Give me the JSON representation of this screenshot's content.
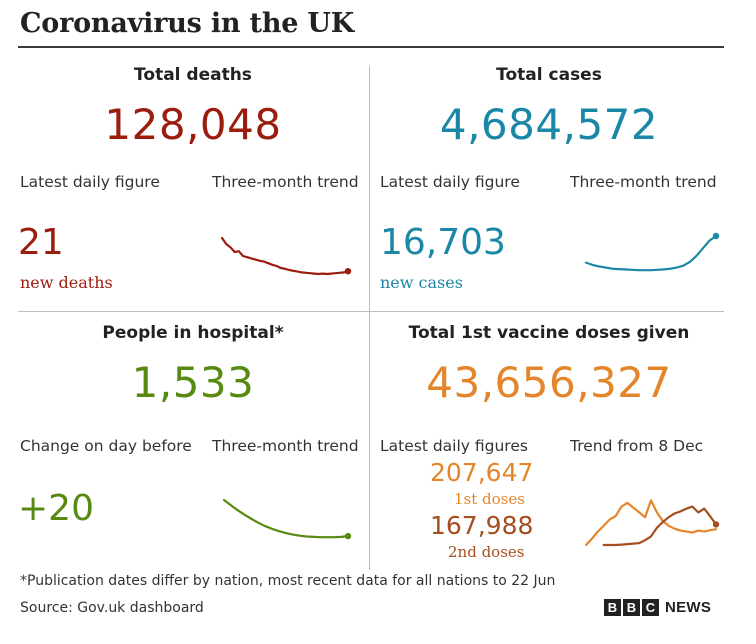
{
  "title": "Coronavirus in the UK",
  "colors": {
    "deaths": "#9c1c0e",
    "cases": "#1a87a6",
    "hospital": "#588a12",
    "vaccine_first": "#e4852a",
    "vaccine_second": "#a54e1f"
  },
  "deaths": {
    "heading": "Total deaths",
    "total": "128,048",
    "daily_label": "Latest daily figure",
    "trend_label": "Three-month trend",
    "daily_value": "21",
    "daily_unit": "new deaths"
  },
  "cases": {
    "heading": "Total cases",
    "total": "4,684,572",
    "daily_label": "Latest daily figure",
    "trend_label": "Three-month trend",
    "daily_value": "16,703",
    "daily_unit": "new cases"
  },
  "hospital": {
    "heading": "People in hospital*",
    "total": "1,533",
    "daily_label": "Change on day before",
    "trend_label": "Three-month trend",
    "daily_value": "+20"
  },
  "vaccine": {
    "heading": "Total 1st vaccine doses given",
    "total": "43,656,327",
    "daily_label": "Latest daily figures",
    "trend_label": "Trend from 8 Dec",
    "first_value": "207,647",
    "first_label": "1st doses",
    "second_value": "167,988",
    "second_label": "2nd doses"
  },
  "chart_data": [
    {
      "type": "line",
      "name": "deaths-trend",
      "values": [
        0.95,
        0.8,
        0.72,
        0.6,
        0.62,
        0.5,
        0.47,
        0.44,
        0.41,
        0.38,
        0.36,
        0.32,
        0.28,
        0.25,
        0.2,
        0.18,
        0.15,
        0.13,
        0.11,
        0.09,
        0.08,
        0.07,
        0.06,
        0.05,
        0.06,
        0.05,
        0.06,
        0.07,
        0.08,
        0.09,
        0.12
      ]
    },
    {
      "type": "line",
      "name": "cases-trend",
      "values": [
        0.3,
        0.24,
        0.2,
        0.17,
        0.14,
        0.13,
        0.12,
        0.11,
        0.1,
        0.1,
        0.1,
        0.11,
        0.12,
        0.14,
        0.17,
        0.22,
        0.32,
        0.48,
        0.68,
        0.88,
        1.0
      ]
    },
    {
      "type": "line",
      "name": "hospital-trend",
      "values": [
        1.0,
        0.86,
        0.73,
        0.61,
        0.5,
        0.4,
        0.31,
        0.24,
        0.18,
        0.13,
        0.09,
        0.06,
        0.04,
        0.03,
        0.02,
        0.02,
        0.02,
        0.03,
        0.05
      ]
    },
    {
      "type": "line",
      "name": "vaccine-trend",
      "series": [
        {
          "name": "1st doses",
          "values": [
            0.02,
            0.15,
            0.3,
            0.42,
            0.55,
            0.62,
            0.82,
            0.9,
            0.8,
            0.7,
            0.6,
            0.95,
            0.7,
            0.52,
            0.42,
            0.36,
            0.32,
            0.3,
            0.28,
            0.32,
            0.3,
            0.33,
            0.35
          ]
        },
        {
          "name": "2nd doses",
          "values": [
            0.02,
            0.02,
            0.02,
            0.03,
            0.04,
            0.05,
            0.06,
            0.12,
            0.2,
            0.38,
            0.5,
            0.6,
            0.68,
            0.72,
            0.78,
            0.82,
            0.7,
            0.78,
            0.62,
            0.45
          ]
        }
      ]
    }
  ],
  "footnote": "*Publication dates differ by nation, most recent data for all nations to 22 Jun",
  "source": "Source: Gov.uk dashboard",
  "brand": {
    "letters": [
      "B",
      "B",
      "C"
    ],
    "news": "NEWS"
  }
}
